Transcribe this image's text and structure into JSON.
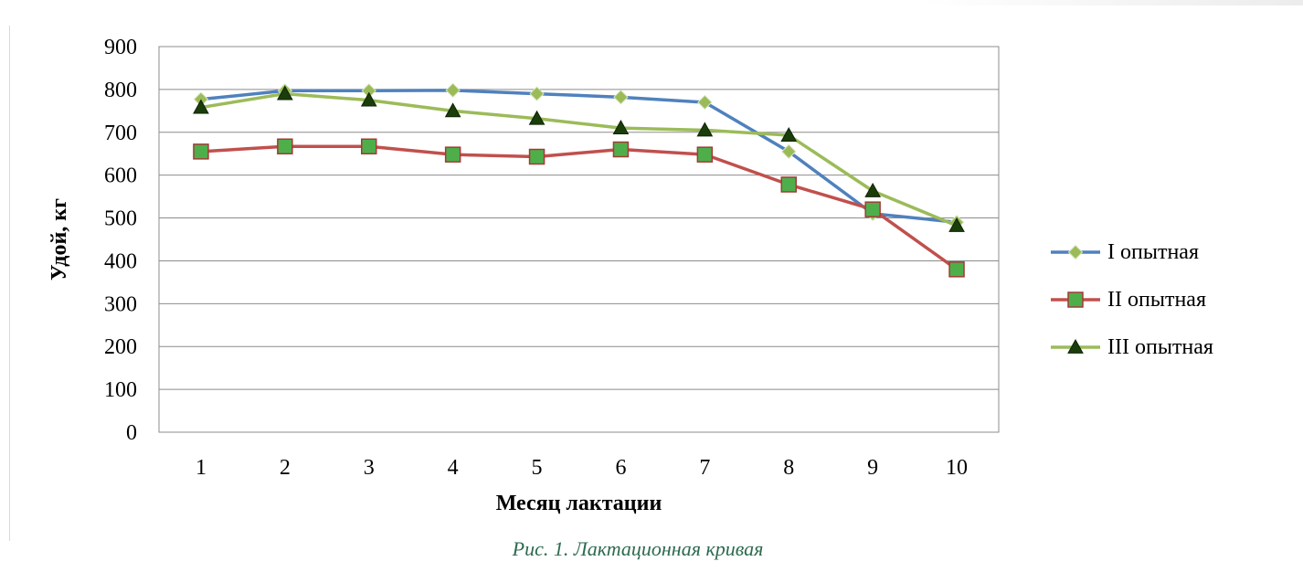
{
  "chart_data": {
    "type": "line",
    "xlabel": "Месяц лактации",
    "ylabel": "Удой, кг",
    "ylim": [
      0,
      900
    ],
    "yticks": [
      "0",
      "100",
      "200",
      "300",
      "400",
      "500",
      "600",
      "700",
      "800",
      "900"
    ],
    "categories": [
      "1",
      "2",
      "3",
      "4",
      "5",
      "6",
      "7",
      "8",
      "9",
      "10"
    ],
    "grid": true,
    "legend_position": "right",
    "series": [
      {
        "name": "I опытная",
        "color": "#4f81bd",
        "marker": "diamond",
        "marker_color": "#9bbb59",
        "values": [
          777,
          797,
          797,
          798,
          790,
          782,
          770,
          655,
          510,
          490
        ]
      },
      {
        "name": "II опытная",
        "color": "#c0504d",
        "marker": "square",
        "marker_color": "#4eaf4a",
        "values": [
          655,
          667,
          667,
          648,
          643,
          660,
          648,
          578,
          520,
          380
        ]
      },
      {
        "name": "III опытная",
        "color": "#9bbb59",
        "marker": "triangle",
        "marker_color": "#1a3d0a",
        "values": [
          758,
          790,
          775,
          750,
          732,
          710,
          705,
          693,
          563,
          482
        ]
      }
    ]
  },
  "caption": "Рис. 1. Лактационная кривая"
}
